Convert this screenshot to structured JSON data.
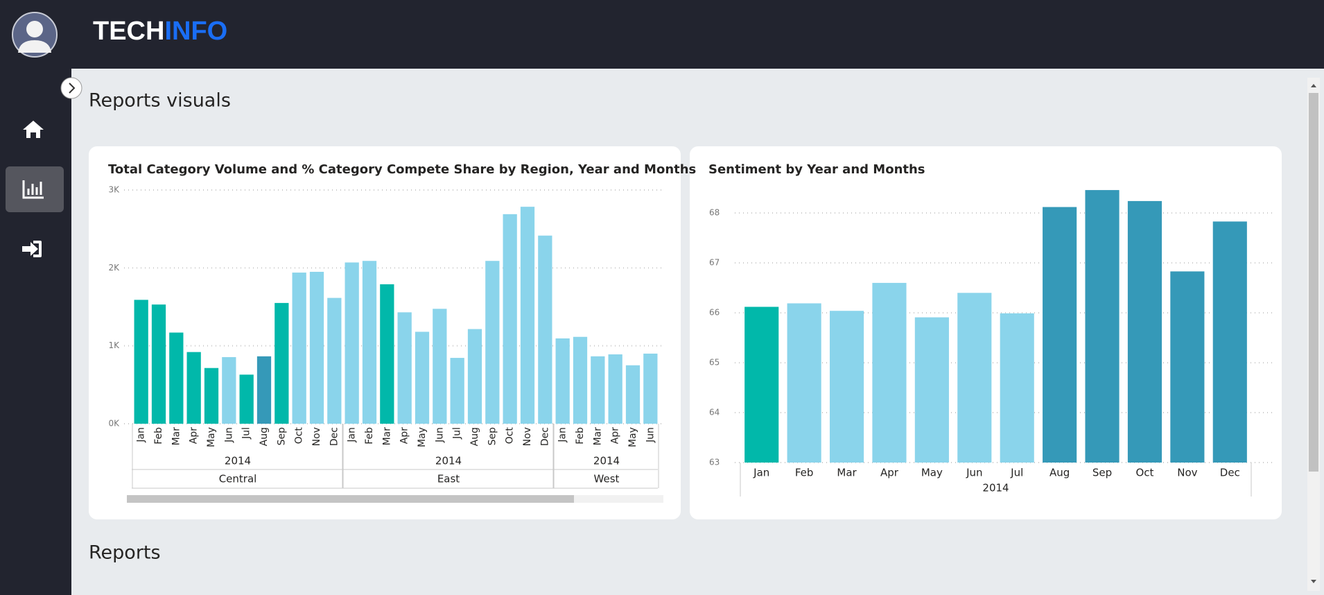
{
  "header": {
    "brand": [
      "TECH",
      "INFO"
    ]
  },
  "sections": [
    "Reports visuals",
    "Reports"
  ],
  "chart_data": [
    {
      "type": "bar",
      "title": "Total Category Volume and % Category Compete Share by Region, Year and Months",
      "groups": [
        {
          "region": "Central",
          "year": "2014",
          "categories": [
            "Jan",
            "Feb",
            "Mar",
            "Apr",
            "May",
            "Jun",
            "Jul",
            "Aug",
            "Sep",
            "Oct",
            "Nov",
            "Dec"
          ],
          "values": [
            1590,
            1530,
            1170,
            920,
            715,
            855,
            630,
            865,
            1550,
            1940,
            1950,
            1615
          ],
          "colors": [
            "#01b8aa",
            "#01b8aa",
            "#01b8aa",
            "#01b8aa",
            "#01b8aa",
            "#8ad4eb",
            "#01b8aa",
            "#3599b8",
            "#01b8aa",
            "#8ad4eb",
            "#8ad4eb",
            "#8ad4eb"
          ]
        },
        {
          "region": "East",
          "year": "2014",
          "categories": [
            "Jan",
            "Feb",
            "Mar",
            "Apr",
            "May",
            "Jun",
            "Jul",
            "Aug",
            "Sep",
            "Oct",
            "Nov",
            "Dec"
          ],
          "values": [
            2070,
            2090,
            1790,
            1430,
            1180,
            1475,
            845,
            1215,
            2090,
            2690,
            2785,
            2415
          ],
          "colors": [
            "#8ad4eb",
            "#8ad4eb",
            "#01b8aa",
            "#8ad4eb",
            "#8ad4eb",
            "#8ad4eb",
            "#8ad4eb",
            "#8ad4eb",
            "#8ad4eb",
            "#8ad4eb",
            "#8ad4eb",
            "#8ad4eb"
          ]
        },
        {
          "region": "West",
          "year": "2014",
          "categories": [
            "Jan",
            "Feb",
            "Mar",
            "Apr",
            "May",
            "Jun"
          ],
          "values": [
            1095,
            1115,
            865,
            890,
            750,
            900
          ],
          "colors": [
            "#8ad4eb",
            "#8ad4eb",
            "#8ad4eb",
            "#8ad4eb",
            "#8ad4eb",
            "#8ad4eb"
          ]
        }
      ],
      "ylim": [
        0,
        3000
      ],
      "yticks": [
        {
          "value": 0,
          "label": "0K"
        },
        {
          "value": 1000,
          "label": "1K"
        },
        {
          "value": 2000,
          "label": "2K"
        },
        {
          "value": 3000,
          "label": "3K"
        }
      ],
      "grid": true
    },
    {
      "type": "bar",
      "title": "Sentiment by Year and Months",
      "year": "2014",
      "categories": [
        "Jan",
        "Feb",
        "Mar",
        "Apr",
        "May",
        "Jun",
        "Jul",
        "Aug",
        "Sep",
        "Oct",
        "Nov",
        "Dec"
      ],
      "values": [
        66.12,
        66.19,
        66.04,
        66.6,
        65.91,
        66.4,
        65.99,
        68.12,
        68.46,
        68.24,
        66.83,
        67.83
      ],
      "colors": [
        "#01b8aa",
        "#8ad4eb",
        "#8ad4eb",
        "#8ad4eb",
        "#8ad4eb",
        "#8ad4eb",
        "#8ad4eb",
        "#3599b8",
        "#3599b8",
        "#3599b8",
        "#3599b8",
        "#3599b8"
      ],
      "ylim": [
        63,
        68.6
      ],
      "yticks": [
        63,
        64,
        65,
        66,
        67,
        68
      ],
      "grid": true
    }
  ]
}
